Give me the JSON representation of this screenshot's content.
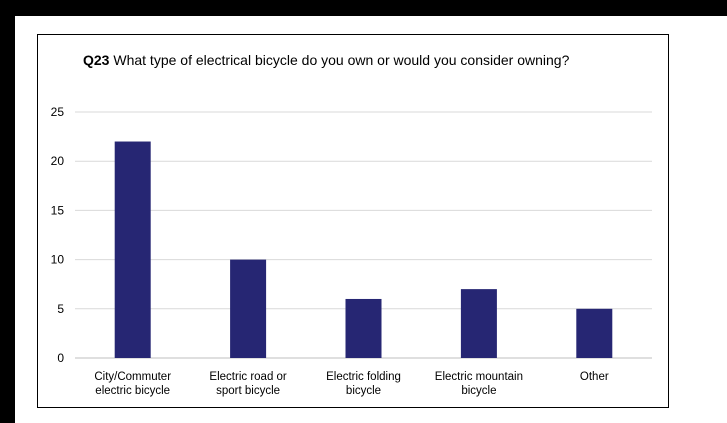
{
  "chart_data": {
    "type": "bar",
    "title_prefix": "Q23",
    "title": "What type of electrical bicycle do you own or would you consider owning?",
    "categories": [
      [
        "City/Commuter",
        "electric bicycle"
      ],
      [
        "Electric road or",
        "sport bicycle"
      ],
      [
        "Electric folding",
        "bicycle"
      ],
      [
        "Electric mountain",
        "bicycle"
      ],
      [
        "Other"
      ]
    ],
    "values": [
      22,
      10,
      6,
      7,
      5
    ],
    "ylim": [
      0,
      25
    ],
    "yticks": [
      0,
      5,
      10,
      15,
      20,
      25
    ],
    "xlabel": "",
    "ylabel": "",
    "grid": true,
    "legend": "none",
    "bar_color": "#262673",
    "grid_color": "#d9d9d9"
  }
}
